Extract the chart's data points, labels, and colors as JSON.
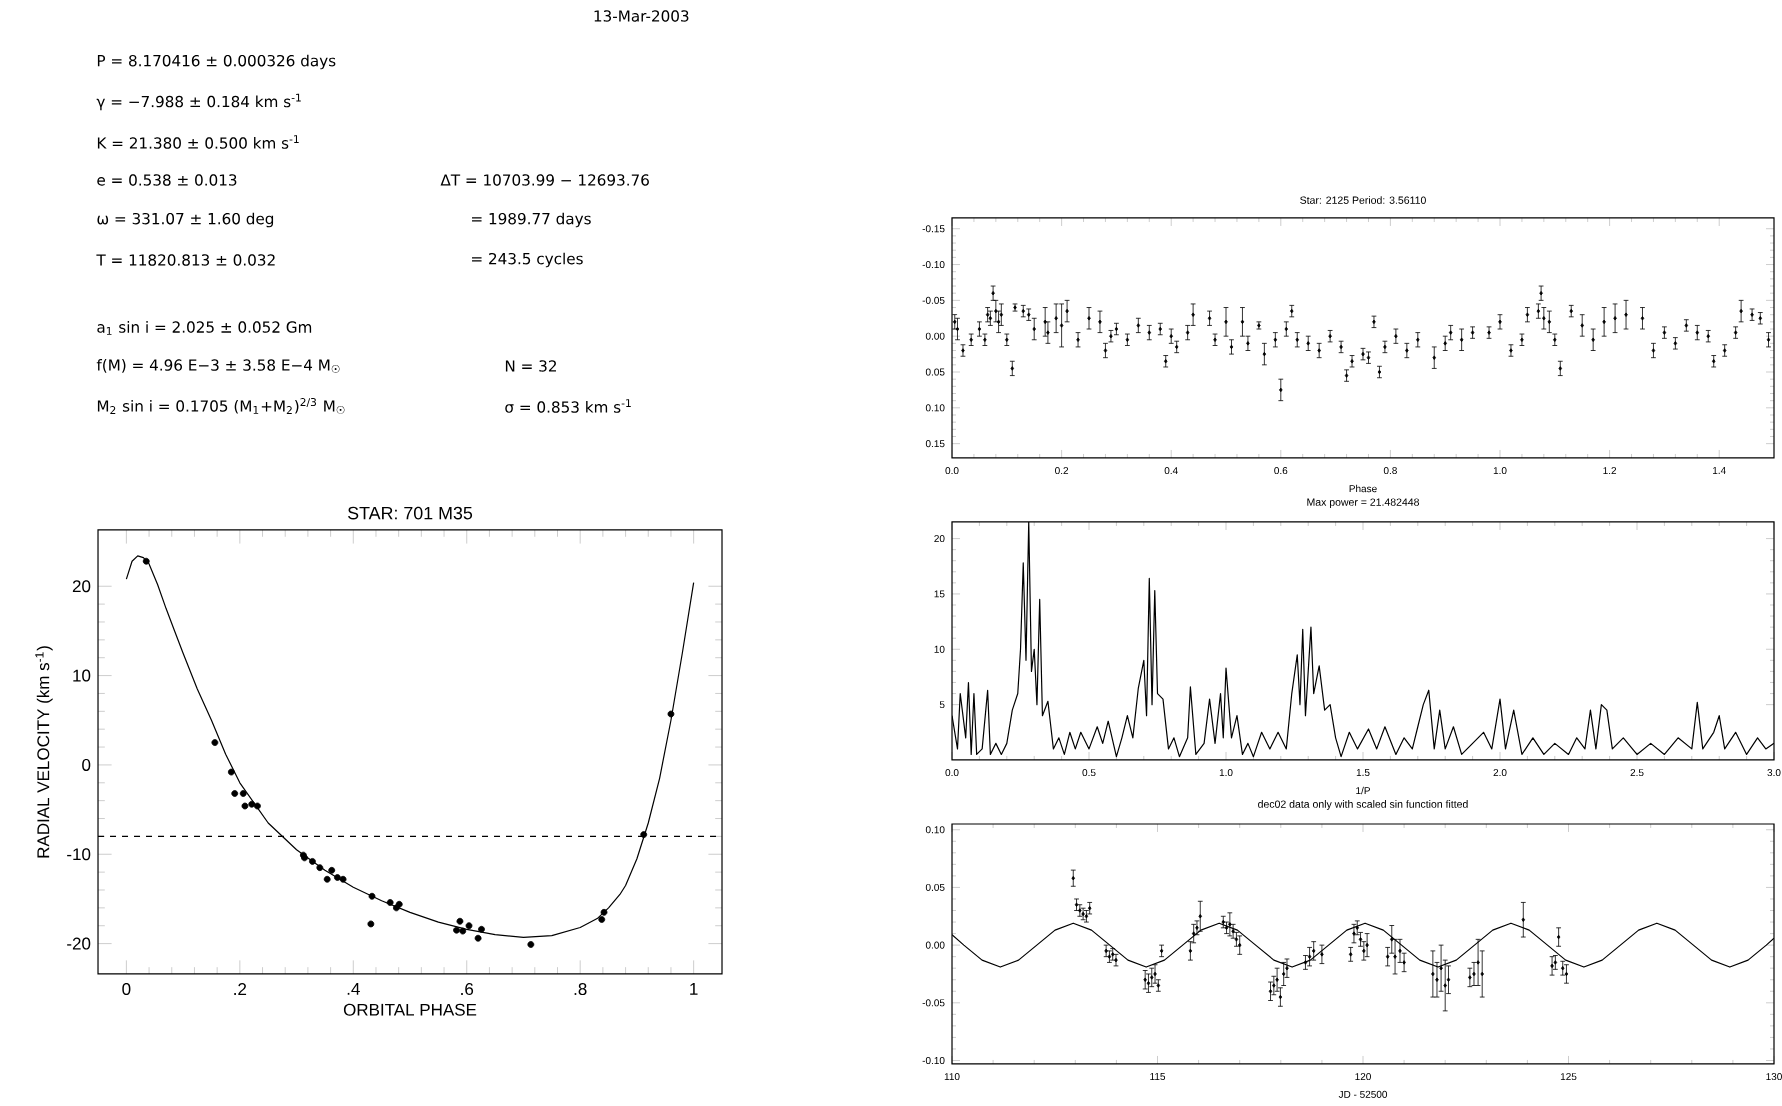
{
  "chart_data": [
    {
      "type": "other",
      "annotations": [
        "13-Mar-2003",
        "P = 8.170416 ± 0.000326 days",
        "γ = −7.988 ± 0.184 km s$^{-1}$",
        "K = 21.380 ± 0.500 km s$^{-1}$",
        "e = 0.538 ± 0.013",
        "ω = 331.07 ± 1.60 deg",
        "T = 11820.813 ± 0.032",
        "a$_{1}$ sin i = 2.025 ± 0.052 Gm",
        "f(M) = 4.96 E−3 ± 3.58 E−4 M$_{☉}$",
        "M$_{2}$ sin i = 0.1705 (M$_{1}$+M$_{2}$)$^{2/3}$ M$_{☉}$",
        "ΔT = 10703.99 − 12693.76",
        "= 1989.77 days",
        "= 243.5 cycles",
        "N = 32",
        "σ = 0.853 km s$^{-1}$"
      ]
    },
    {
      "type": "scatter",
      "title": "STAR: 701 M35",
      "xlabel": "ORBITAL PHASE",
      "ylabel": "RADIAL VELOCITY (km s$^{-1}$)",
      "xlim": [
        -0.05,
        1.05
      ],
      "ylim": [
        -23.4,
        26.3
      ],
      "xticks": [
        0,
        {
          "value": 0.2,
          "label": ".2"
        },
        {
          "value": 0.4,
          "label": ".4"
        },
        {
          "value": 0.6,
          "label": ".6"
        },
        {
          "value": 0.8,
          "label": ".8"
        },
        1
      ],
      "yticks": [
        -20,
        -10,
        0,
        10,
        20
      ],
      "ref_lines": [
        {
          "axis": "y",
          "value": -7.988,
          "line_style": "dashed"
        }
      ],
      "series": [
        {
          "type": "scatter",
          "color": "#000000",
          "marker": "circle",
          "x": [
            0.035,
            0.156,
            0.185,
            0.191,
            0.206,
            0.209,
            0.221,
            0.231,
            0.312,
            0.314,
            0.328,
            0.341,
            0.354,
            0.362,
            0.372,
            0.382,
            0.433,
            0.431,
            0.465,
            0.476,
            0.481,
            0.582,
            0.588,
            0.593,
            0.604,
            0.62,
            0.626,
            0.713,
            0.838,
            0.842,
            0.912,
            0.96
          ],
          "values": [
            22.8,
            2.5,
            -0.8,
            -3.2,
            -3.2,
            -4.6,
            -4.4,
            -4.6,
            -10.1,
            -10.4,
            -10.8,
            -11.5,
            -12.8,
            -11.8,
            -12.6,
            -12.8,
            -14.7,
            -17.8,
            -15.4,
            -16.0,
            -15.6,
            -18.5,
            -17.5,
            -18.6,
            -18.0,
            -19.4,
            -18.4,
            -20.1,
            -17.3,
            -16.5,
            -7.8,
            5.7
          ]
        },
        {
          "type": "line",
          "color": "#000000",
          "x": [
            0.0,
            0.01,
            0.02,
            0.03,
            0.04,
            0.055,
            0.07,
            0.085,
            0.1,
            0.125,
            0.15,
            0.175,
            0.2,
            0.25,
            0.3,
            0.35,
            0.4,
            0.45,
            0.5,
            0.55,
            0.6,
            0.65,
            0.7,
            0.75,
            0.8,
            0.83,
            0.85,
            0.87,
            0.88,
            0.9,
            0.92,
            0.94,
            0.96,
            0.98,
            1.0
          ],
          "values": [
            20.8,
            22.8,
            23.4,
            23.2,
            22.5,
            20.2,
            17.5,
            15.0,
            12.5,
            8.5,
            5.0,
            1.2,
            -2.0,
            -6.5,
            -9.5,
            -11.8,
            -13.7,
            -15.2,
            -16.5,
            -17.6,
            -18.4,
            -19.0,
            -19.3,
            -19.1,
            -18.2,
            -17.2,
            -16.0,
            -14.5,
            -13.5,
            -10.5,
            -6.5,
            -1.5,
            5.0,
            12.5,
            20.4
          ]
        }
      ]
    },
    {
      "type": "scatter",
      "title": "Star: 2125 Period: 3.56110",
      "xlabel": "Phase",
      "xlim": [
        0,
        1.5
      ],
      "ylim": [
        0.17,
        -0.165
      ],
      "xticks": [
        {
          "value": 0,
          "label": "0.0"
        },
        0.2,
        0.4,
        0.6,
        0.8,
        {
          "value": 1,
          "label": "1.0"
        },
        1.2,
        1.4
      ],
      "yticks": [
        -0.15,
        {
          "value": -0.1,
          "label": "-0.10"
        },
        -0.05,
        {
          "value": 0,
          "label": "0.00"
        },
        0.05,
        {
          "value": 0.1,
          "label": "0.10"
        },
        0.15
      ],
      "series": [
        {
          "type": "scatter",
          "color": "#000000",
          "marker": "diamond",
          "x": [
            0.005,
            0.01,
            0.02,
            0.035,
            0.05,
            0.06,
            0.065,
            0.07,
            0.075,
            0.08,
            0.085,
            0.09,
            0.1,
            0.11,
            0.115,
            0.13,
            0.14,
            0.15,
            0.17,
            0.175,
            0.19,
            0.2,
            0.21,
            0.23,
            0.25,
            0.27,
            0.28,
            0.29,
            0.3,
            0.32,
            0.34,
            0.36,
            0.38,
            0.39,
            0.4,
            0.41,
            0.43,
            0.44,
            0.47,
            0.48,
            0.5,
            0.51,
            0.53,
            0.54,
            0.56,
            0.57,
            0.59,
            0.6,
            0.61,
            0.62,
            0.63,
            0.65,
            0.67,
            0.69,
            0.71,
            0.72,
            0.73,
            0.75,
            0.76,
            0.77,
            0.78,
            0.79,
            0.81,
            0.83,
            0.85,
            0.88,
            0.9,
            0.91,
            0.93,
            0.95,
            0.98,
            1.0,
            1.02,
            1.04,
            1.05,
            1.07,
            1.075,
            1.08,
            1.09,
            1.1,
            1.11,
            1.13,
            1.15,
            1.17,
            1.19,
            1.21,
            1.23,
            1.26,
            1.28,
            1.3,
            1.32,
            1.34,
            1.36,
            1.38,
            1.39,
            1.41,
            1.43,
            1.44,
            1.46,
            1.475,
            1.49
          ],
          "values": [
            -0.02,
            -0.01,
            0.02,
            0.005,
            -0.01,
            0.005,
            -0.03,
            -0.025,
            -0.06,
            -0.035,
            -0.02,
            -0.03,
            0.005,
            0.045,
            -0.04,
            -0.035,
            -0.03,
            -0.01,
            -0.02,
            -0.005,
            -0.025,
            -0.015,
            -0.035,
            0.005,
            -0.025,
            -0.02,
            0.02,
            0.0,
            -0.01,
            0.005,
            -0.015,
            -0.005,
            -0.01,
            0.035,
            0.0,
            0.015,
            -0.005,
            -0.03,
            -0.025,
            0.005,
            -0.02,
            0.015,
            -0.02,
            0.01,
            -0.015,
            0.025,
            0.005,
            0.075,
            -0.01,
            -0.035,
            0.005,
            0.01,
            0.02,
            0.0,
            0.015,
            0.055,
            0.035,
            0.025,
            0.03,
            -0.02,
            0.05,
            0.015,
            0.0,
            0.02,
            0.005,
            0.03,
            0.01,
            -0.005,
            0.005,
            -0.005,
            -0.005,
            -0.02,
            0.02,
            0.005,
            -0.03,
            -0.035,
            -0.06,
            -0.025,
            -0.02,
            0.005,
            0.045,
            -0.035,
            -0.015,
            0.005,
            -0.02,
            -0.025,
            -0.03,
            -0.025,
            0.02,
            -0.005,
            0.01,
            -0.015,
            -0.005,
            0.0,
            0.035,
            0.02,
            -0.005,
            -0.035,
            -0.03,
            -0.025,
            0.005
          ],
          "errors": [
            0.01,
            0.015,
            0.008,
            0.008,
            0.01,
            0.008,
            0.01,
            0.01,
            0.01,
            0.015,
            0.015,
            0.015,
            0.008,
            0.01,
            0.005,
            0.008,
            0.008,
            0.015,
            0.02,
            0.015,
            0.02,
            0.03,
            0.015,
            0.01,
            0.015,
            0.015,
            0.01,
            0.008,
            0.008,
            0.008,
            0.01,
            0.01,
            0.008,
            0.008,
            0.01,
            0.008,
            0.01,
            0.015,
            0.01,
            0.008,
            0.02,
            0.01,
            0.02,
            0.01,
            0.005,
            0.015,
            0.01,
            0.015,
            0.01,
            0.008,
            0.01,
            0.01,
            0.01,
            0.008,
            0.008,
            0.008,
            0.008,
            0.008,
            0.008,
            0.008,
            0.008,
            0.008,
            0.01,
            0.01,
            0.01,
            0.015,
            0.01,
            0.01,
            0.015,
            0.008,
            0.008,
            0.01,
            0.008,
            0.008,
            0.01,
            0.01,
            0.01,
            0.015,
            0.015,
            0.008,
            0.01,
            0.008,
            0.015,
            0.015,
            0.02,
            0.02,
            0.02,
            0.015,
            0.01,
            0.008,
            0.008,
            0.008,
            0.01,
            0.008,
            0.008,
            0.008,
            0.008,
            0.015,
            0.008,
            0.008,
            0.01
          ]
        }
      ]
    },
    {
      "type": "line",
      "title": "Max power = 21.482448",
      "xlabel": "1/P",
      "xlim": [
        0,
        3
      ],
      "ylim": [
        0,
        21.5
      ],
      "xticks": [
        {
          "value": 0,
          "label": "0.0"
        },
        0.5,
        {
          "value": 1,
          "label": "1.0"
        },
        1.5,
        {
          "value": 2,
          "label": "2.0"
        },
        2.5,
        {
          "value": 3,
          "label": "3.0"
        }
      ],
      "yticks": [
        5,
        10,
        15,
        20
      ],
      "series": [
        {
          "color": "#000000",
          "x": [
            0.0,
            0.02,
            0.03,
            0.05,
            0.06,
            0.07,
            0.08,
            0.09,
            0.11,
            0.13,
            0.14,
            0.16,
            0.18,
            0.2,
            0.22,
            0.24,
            0.25,
            0.26,
            0.27,
            0.28,
            0.29,
            0.3,
            0.31,
            0.32,
            0.33,
            0.35,
            0.37,
            0.39,
            0.41,
            0.43,
            0.45,
            0.47,
            0.5,
            0.53,
            0.55,
            0.57,
            0.6,
            0.62,
            0.64,
            0.66,
            0.68,
            0.7,
            0.71,
            0.72,
            0.73,
            0.74,
            0.75,
            0.77,
            0.79,
            0.81,
            0.83,
            0.86,
            0.87,
            0.89,
            0.92,
            0.94,
            0.96,
            0.98,
            0.99,
            1.0,
            1.02,
            1.04,
            1.06,
            1.08,
            1.1,
            1.13,
            1.16,
            1.19,
            1.22,
            1.24,
            1.26,
            1.27,
            1.28,
            1.29,
            1.31,
            1.32,
            1.34,
            1.36,
            1.38,
            1.4,
            1.42,
            1.45,
            1.48,
            1.52,
            1.55,
            1.58,
            1.62,
            1.65,
            1.68,
            1.7,
            1.72,
            1.74,
            1.76,
            1.78,
            1.8,
            1.83,
            1.86,
            1.9,
            1.94,
            1.97,
            2.0,
            2.02,
            2.05,
            2.08,
            2.12,
            2.16,
            2.2,
            2.25,
            2.28,
            2.31,
            2.33,
            2.35,
            2.37,
            2.39,
            2.41,
            2.45,
            2.5,
            2.55,
            2.6,
            2.65,
            2.7,
            2.72,
            2.74,
            2.78,
            2.8,
            2.82,
            2.86,
            2.9,
            2.94,
            2.97,
            3.0
          ],
          "values": [
            4,
            1,
            6,
            2,
            7,
            0.5,
            6,
            0.5,
            1,
            6.3,
            0.5,
            1.5,
            0.5,
            1.5,
            4.5,
            6,
            10,
            17.8,
            9,
            21.5,
            8,
            10,
            5,
            14.5,
            4,
            5.3,
            1,
            2,
            0.5,
            2.5,
            1,
            2.5,
            1,
            3,
            1.5,
            3.5,
            0.3,
            2,
            4,
            2,
            6.5,
            9,
            4,
            16.4,
            5,
            15.3,
            6,
            5.5,
            1,
            2,
            0.3,
            2,
            6.6,
            0.5,
            1.5,
            5.5,
            1.5,
            6,
            2,
            8.3,
            2,
            4,
            0.5,
            1.5,
            0.3,
            2.5,
            1,
            2.5,
            1,
            6,
            9.5,
            5,
            11.8,
            4,
            12,
            6,
            8.5,
            4.5,
            5,
            2,
            0.3,
            2.5,
            1,
            2.8,
            1,
            3,
            0.5,
            2,
            1,
            3,
            5,
            6.3,
            1,
            4.5,
            1,
            3,
            0.5,
            1.5,
            2.5,
            1,
            5.5,
            1,
            4.5,
            0.5,
            2,
            0.5,
            1.5,
            0.5,
            2,
            1,
            4.5,
            1,
            5,
            4.5,
            1,
            2,
            0.5,
            1.5,
            0.5,
            2,
            1,
            5.2,
            1,
            2.5,
            4,
            1,
            2.5,
            0.5,
            2,
            1,
            1.5
          ]
        }
      ]
    },
    {
      "type": "scatter",
      "title": "dec02 data only with scaled sin function fitted",
      "xlabel": "JD - 52500",
      "xlim": [
        110,
        130
      ],
      "ylim": [
        -0.103,
        0.105
      ],
      "xticks": [
        110,
        115,
        120,
        125,
        130
      ],
      "yticks": [
        {
          "value": -0.1,
          "label": "-0.10"
        },
        -0.05,
        {
          "value": 0,
          "label": "0.00"
        },
        0.05,
        {
          "value": 0.1,
          "label": "0.10"
        }
      ],
      "series": [
        {
          "type": "line",
          "color": "#000000",
          "x": [
            110,
            110.288,
            110.731,
            111.175,
            111.619,
            112.063,
            112.506,
            112.95,
            113.394,
            113.838,
            114.281,
            114.725,
            115.169,
            115.613,
            116.056,
            116.5,
            116.944,
            117.388,
            117.831,
            118.275,
            118.719,
            119.163,
            119.606,
            120.05,
            120.494,
            120.938,
            121.381,
            121.825,
            122.269,
            122.713,
            123.156,
            123.6,
            124.044,
            124.488,
            124.931,
            125.375,
            125.819,
            126.263,
            126.706,
            127.15,
            127.594,
            128.038,
            128.481,
            128.925,
            129.369,
            129.813,
            130
          ],
          "values": [
            0.009,
            0,
            -0.013,
            -0.019,
            -0.013,
            0,
            0.013,
            0.019,
            0.013,
            0,
            -0.013,
            -0.019,
            -0.013,
            0,
            0.013,
            0.019,
            0.013,
            0,
            -0.013,
            -0.019,
            -0.013,
            0,
            0.013,
            0.019,
            0.013,
            0,
            -0.013,
            -0.019,
            -0.013,
            0,
            0.013,
            0.019,
            0.013,
            0,
            -0.013,
            -0.019,
            -0.013,
            0,
            0.013,
            0.019,
            0.013,
            0,
            -0.013,
            -0.019,
            -0.013,
            0,
            0.006
          ]
        },
        {
          "type": "scatter",
          "color": "#000000",
          "marker": "diamond",
          "x": [
            112.95,
            113.03,
            113.11,
            113.19,
            113.27,
            113.35,
            113.75,
            113.83,
            113.91,
            113.99,
            114.7,
            114.78,
            114.86,
            114.94,
            115.02,
            115.1,
            115.8,
            115.88,
            115.96,
            116.04,
            116.6,
            116.68,
            116.76,
            116.84,
            116.92,
            117.0,
            117.75,
            117.83,
            117.91,
            117.99,
            118.07,
            118.15,
            118.6,
            118.7,
            118.8,
            119.0,
            119.7,
            119.78,
            119.86,
            119.94,
            120.02,
            120.1,
            120.6,
            120.7,
            120.78,
            120.9,
            121.0,
            121.7,
            121.8,
            121.9,
            122.0,
            122.08,
            122.6,
            122.7,
            122.8,
            122.9,
            123.9,
            124.6,
            124.68,
            124.76,
            124.86,
            124.95
          ],
          "values": [
            0.058,
            0.035,
            0.03,
            0.027,
            0.025,
            0.032,
            -0.005,
            -0.01,
            -0.008,
            -0.013,
            -0.03,
            -0.033,
            -0.028,
            -0.025,
            -0.035,
            -0.005,
            -0.005,
            0.01,
            0.015,
            0.025,
            0.02,
            0.015,
            0.018,
            0.012,
            0.005,
            0.0,
            -0.04,
            -0.035,
            -0.03,
            -0.045,
            -0.025,
            -0.02,
            -0.015,
            -0.01,
            -0.005,
            -0.008,
            -0.008,
            0.01,
            0.015,
            0.005,
            -0.005,
            0.0,
            -0.01,
            0.005,
            -0.01,
            -0.005,
            -0.015,
            -0.025,
            -0.03,
            -0.02,
            -0.035,
            -0.03,
            -0.028,
            -0.025,
            -0.015,
            -0.025,
            0.022,
            -0.018,
            -0.015,
            0.007,
            -0.02,
            -0.025
          ],
          "errors": [
            0.007,
            0.005,
            0.005,
            0.005,
            0.005,
            0.005,
            0.005,
            0.005,
            0.005,
            0.005,
            0.008,
            0.008,
            0.008,
            0.008,
            0.005,
            0.005,
            0.008,
            0.008,
            0.006,
            0.013,
            0.005,
            0.005,
            0.01,
            0.006,
            0.006,
            0.008,
            0.008,
            0.008,
            0.01,
            0.008,
            0.01,
            0.008,
            0.006,
            0.008,
            0.008,
            0.008,
            0.006,
            0.008,
            0.006,
            0.006,
            0.008,
            0.01,
            0.008,
            0.012,
            0.015,
            0.01,
            0.008,
            0.02,
            0.015,
            0.02,
            0.022,
            0.012,
            0.008,
            0.01,
            0.02,
            0.02,
            0.015,
            0.008,
            0.006,
            0.008,
            0.006,
            0.008
          ]
        }
      ]
    }
  ]
}
